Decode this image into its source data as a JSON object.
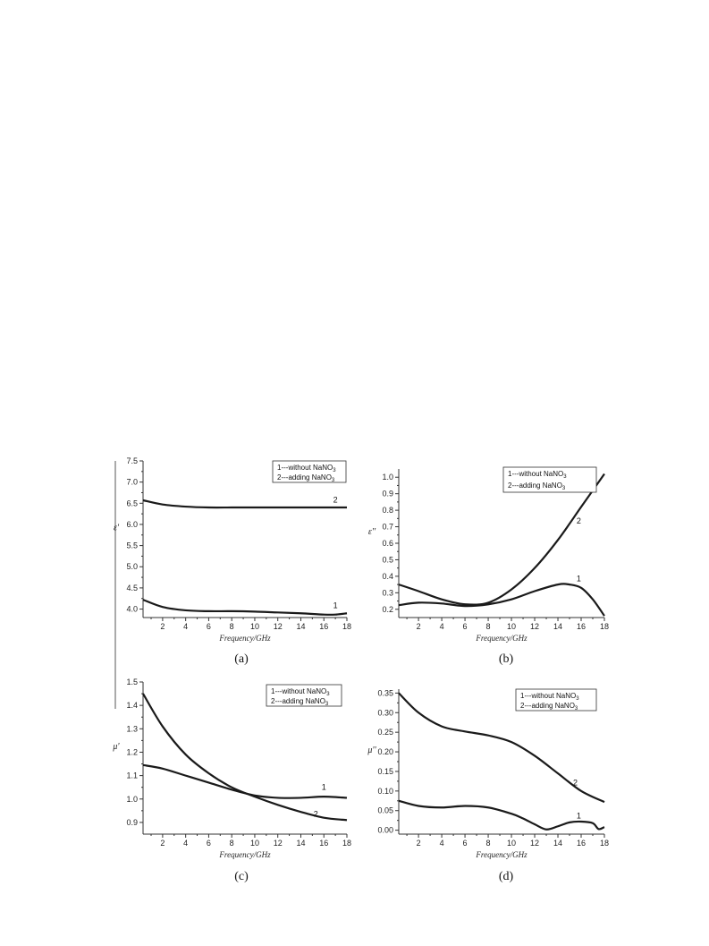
{
  "chart_data": [
    {
      "panel": "(a)",
      "type": "line",
      "xlabel": "Frequency/GHz",
      "ylabel": "ε'",
      "xlim": [
        0.3,
        18
      ],
      "ylim": [
        3.8,
        7.5
      ],
      "xticks": [
        2,
        4,
        6,
        8,
        10,
        12,
        14,
        16,
        18
      ],
      "yticks": [
        4.0,
        4.5,
        5.0,
        5.5,
        6.0,
        6.5,
        7.0,
        7.5
      ],
      "ytick_labels": [
        "4.0",
        "4.5",
        "5.0",
        "5.5",
        "6.0",
        "6.5",
        "7.0",
        "7.5"
      ],
      "legend": {
        "placement": "top-right",
        "entries": [
          {
            "text": "1---without NaNO",
            "sub": "3"
          },
          {
            "text": "2---adding NaNO",
            "sub": "3"
          }
        ]
      },
      "series": [
        {
          "name": "1",
          "label_at": [
            17.0,
            4.02
          ],
          "x": [
            0.3,
            2,
            4,
            6,
            8,
            10,
            12,
            14,
            16,
            17,
            18
          ],
          "y": [
            4.22,
            4.05,
            3.97,
            3.95,
            3.95,
            3.94,
            3.92,
            3.9,
            3.87,
            3.87,
            3.9
          ]
        },
        {
          "name": "2",
          "label_at": [
            17.0,
            6.52
          ],
          "x": [
            0.3,
            2,
            4,
            6,
            8,
            10,
            12,
            14,
            16,
            18
          ],
          "y": [
            6.57,
            6.47,
            6.42,
            6.4,
            6.4,
            6.4,
            6.4,
            6.4,
            6.4,
            6.4
          ]
        }
      ]
    },
    {
      "panel": "(b)",
      "type": "line",
      "xlabel": "Frequency/GHz",
      "ylabel": "ε''",
      "xlim": [
        0.3,
        18
      ],
      "ylim": [
        0.15,
        1.05
      ],
      "xticks": [
        2,
        4,
        6,
        8,
        10,
        12,
        14,
        16,
        18
      ],
      "yticks": [
        0.2,
        0.3,
        0.4,
        0.5,
        0.6,
        0.7,
        0.8,
        0.9,
        1.0
      ],
      "ytick_labels": [
        "0.2",
        "0.3",
        "0.4",
        "0.5",
        "0.6",
        "0.7",
        "0.8",
        "0.9",
        "1.0"
      ],
      "legend": {
        "placement": "top-right",
        "entries": [
          {
            "text": "1---without NaNO",
            "sub": "3"
          },
          {
            "text": "2---adding NaNO",
            "sub": "3"
          }
        ]
      },
      "series": [
        {
          "name": "1",
          "label_at": [
            15.8,
            0.37
          ],
          "x": [
            0.3,
            2,
            4,
            6,
            8,
            10,
            12,
            14,
            15,
            16,
            17,
            18
          ],
          "y": [
            0.225,
            0.24,
            0.235,
            0.22,
            0.23,
            0.26,
            0.31,
            0.35,
            0.35,
            0.33,
            0.26,
            0.16
          ]
        },
        {
          "name": "2",
          "label_at": [
            15.8,
            0.72
          ],
          "x": [
            0.3,
            2,
            4,
            6,
            8,
            10,
            12,
            14,
            16,
            18
          ],
          "y": [
            0.35,
            0.31,
            0.26,
            0.23,
            0.24,
            0.32,
            0.45,
            0.62,
            0.82,
            1.02
          ]
        }
      ]
    },
    {
      "panel": "(c)",
      "type": "line",
      "xlabel": "Frequency/GHz",
      "ylabel": "μ'",
      "xlim": [
        0.3,
        18
      ],
      "ylim": [
        0.85,
        1.5
      ],
      "xticks": [
        2,
        4,
        6,
        8,
        10,
        12,
        14,
        16,
        18
      ],
      "yticks": [
        0.9,
        1.0,
        1.1,
        1.2,
        1.3,
        1.4,
        1.5
      ],
      "ytick_labels": [
        "0.9",
        "1.0",
        "1.1",
        "1.2",
        "1.3",
        "1.4",
        "1.5"
      ],
      "legend": {
        "placement": "top-right",
        "entries": [
          {
            "text": "1---without NaNO",
            "sub": "3"
          },
          {
            "text": "2---adding NaNO",
            "sub": "3"
          }
        ]
      },
      "series": [
        {
          "name": "1",
          "label_at": [
            16.0,
            1.04
          ],
          "x": [
            0.3,
            2,
            4,
            6,
            8,
            10,
            12,
            14,
            16,
            18
          ],
          "y": [
            1.145,
            1.13,
            1.1,
            1.07,
            1.04,
            1.015,
            1.005,
            1.005,
            1.01,
            1.005
          ]
        },
        {
          "name": "2",
          "label_at": [
            15.3,
            0.925
          ],
          "x": [
            0.3,
            2,
            4,
            6,
            8,
            10,
            12,
            14,
            16,
            18
          ],
          "y": [
            1.45,
            1.31,
            1.19,
            1.11,
            1.05,
            1.01,
            0.975,
            0.945,
            0.92,
            0.91
          ]
        }
      ]
    },
    {
      "panel": "(d)",
      "type": "line",
      "xlabel": "Frequency/GHz",
      "ylabel": "μ''",
      "xlim": [
        0.3,
        18
      ],
      "ylim": [
        -0.01,
        0.36
      ],
      "xticks": [
        2,
        4,
        6,
        8,
        10,
        12,
        14,
        16,
        18
      ],
      "yticks": [
        0.0,
        0.05,
        0.1,
        0.15,
        0.2,
        0.25,
        0.3,
        0.35
      ],
      "ytick_labels": [
        "0.00",
        "0.05",
        "0.10",
        "0.15",
        "0.20",
        "0.25",
        "0.30",
        "0.35"
      ],
      "legend": {
        "placement": "top-right",
        "entries": [
          {
            "text": "1---without NaNO",
            "sub": "3"
          },
          {
            "text": "2---adding NaNO",
            "sub": "3"
          }
        ]
      },
      "series": [
        {
          "name": "1",
          "label_at": [
            15.8,
            0.03
          ],
          "x": [
            0.3,
            2,
            4,
            6,
            8,
            10,
            11,
            12,
            13,
            14,
            15,
            16,
            17,
            17.5,
            18
          ],
          "y": [
            0.075,
            0.062,
            0.058,
            0.062,
            0.058,
            0.042,
            0.03,
            0.015,
            0.002,
            0.01,
            0.02,
            0.022,
            0.018,
            0.003,
            0.008
          ]
        },
        {
          "name": "2",
          "label_at": [
            15.5,
            0.115
          ],
          "x": [
            0.3,
            2,
            4,
            6,
            8,
            10,
            12,
            14,
            16,
            18
          ],
          "y": [
            0.35,
            0.3,
            0.265,
            0.252,
            0.242,
            0.225,
            0.19,
            0.145,
            0.1,
            0.072
          ]
        }
      ]
    }
  ],
  "captions": [
    "(a)",
    "(b)",
    "(c)",
    "(d)"
  ]
}
